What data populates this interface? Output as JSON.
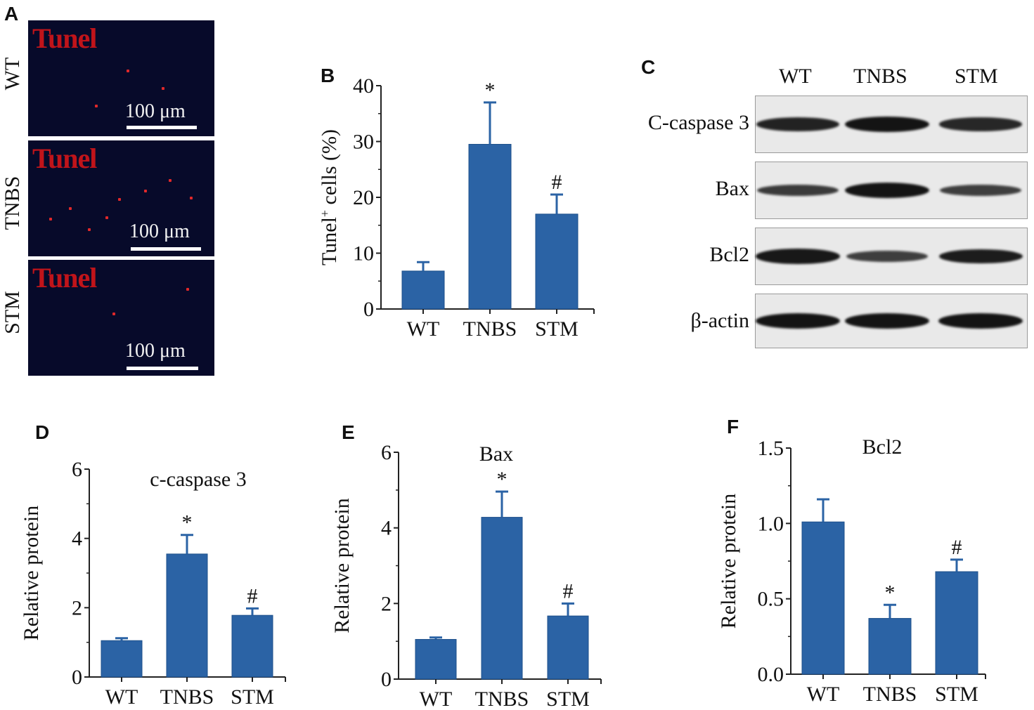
{
  "panel_labels": {
    "A": "A",
    "B": "B",
    "C": "C",
    "D": "D",
    "E": "E",
    "F": "F"
  },
  "micrographs": [
    {
      "group": "WT",
      "stain": "Tunel",
      "scale": "100 μm"
    },
    {
      "group": "TNBS",
      "stain": "Tunel",
      "scale": "100 μm"
    },
    {
      "group": "STM",
      "stain": "Tunel",
      "scale": "100 μm"
    }
  ],
  "western_blot": {
    "columns": [
      "WT",
      "TNBS",
      "STM"
    ],
    "rows": [
      {
        "label": "C-caspase 3",
        "intensity": [
          0.85,
          1.0,
          0.8
        ]
      },
      {
        "label": "Bax",
        "intensity": [
          0.6,
          1.0,
          0.55
        ]
      },
      {
        "label": "Bcl2",
        "intensity": [
          0.95,
          0.55,
          0.9
        ]
      },
      {
        "label": "β-actin",
        "intensity": [
          1.0,
          1.0,
          1.0
        ]
      }
    ]
  },
  "colors": {
    "bar": "#2b63a5",
    "bar_edge": "#1d4f8a",
    "axis": "#222222"
  },
  "chart_data": [
    {
      "id": "B",
      "type": "bar",
      "title": "",
      "categories": [
        "WT",
        "TNBS",
        "STM"
      ],
      "values": [
        6.8,
        29.5,
        17.0
      ],
      "errors": [
        1.6,
        7.5,
        3.5
      ],
      "marks": [
        "",
        "*",
        "#"
      ],
      "ylabel": "Tunel cells (%)",
      "ylabel_main": "Tunel",
      "ylabel_sup": "+",
      "ylabel_rest": " cells (%)",
      "ylim": [
        0,
        40
      ],
      "yticks": [
        "0",
        "10",
        "20",
        "30",
        "40"
      ]
    },
    {
      "id": "D",
      "type": "bar",
      "title": "c-caspase 3",
      "categories": [
        "WT",
        "TNBS",
        "STM"
      ],
      "values": [
        1.05,
        3.55,
        1.78
      ],
      "errors": [
        0.07,
        0.55,
        0.2
      ],
      "marks": [
        "",
        "*",
        "#"
      ],
      "ylabel": "Relative protein",
      "ylim": [
        0,
        6
      ],
      "yticks": [
        "0",
        "2",
        "4",
        "6"
      ]
    },
    {
      "id": "E",
      "type": "bar",
      "title": "Bax",
      "categories": [
        "WT",
        "TNBS",
        "STM"
      ],
      "values": [
        1.05,
        4.28,
        1.67
      ],
      "errors": [
        0.05,
        0.68,
        0.33
      ],
      "marks": [
        "",
        "*",
        "#"
      ],
      "ylabel": "Relative protein",
      "ylim": [
        0,
        6
      ],
      "yticks": [
        "0",
        "2",
        "4",
        "6"
      ]
    },
    {
      "id": "F",
      "type": "bar",
      "title": "Bcl2",
      "categories": [
        "WT",
        "TNBS",
        "STM"
      ],
      "values": [
        1.01,
        0.37,
        0.68
      ],
      "errors": [
        0.15,
        0.09,
        0.08
      ],
      "marks": [
        "",
        "*",
        "#"
      ],
      "ylabel": "Relative protein",
      "ylim": [
        0,
        1.5
      ],
      "yticks": [
        "0.0",
        "0.5",
        "1.0",
        "1.5"
      ]
    }
  ]
}
